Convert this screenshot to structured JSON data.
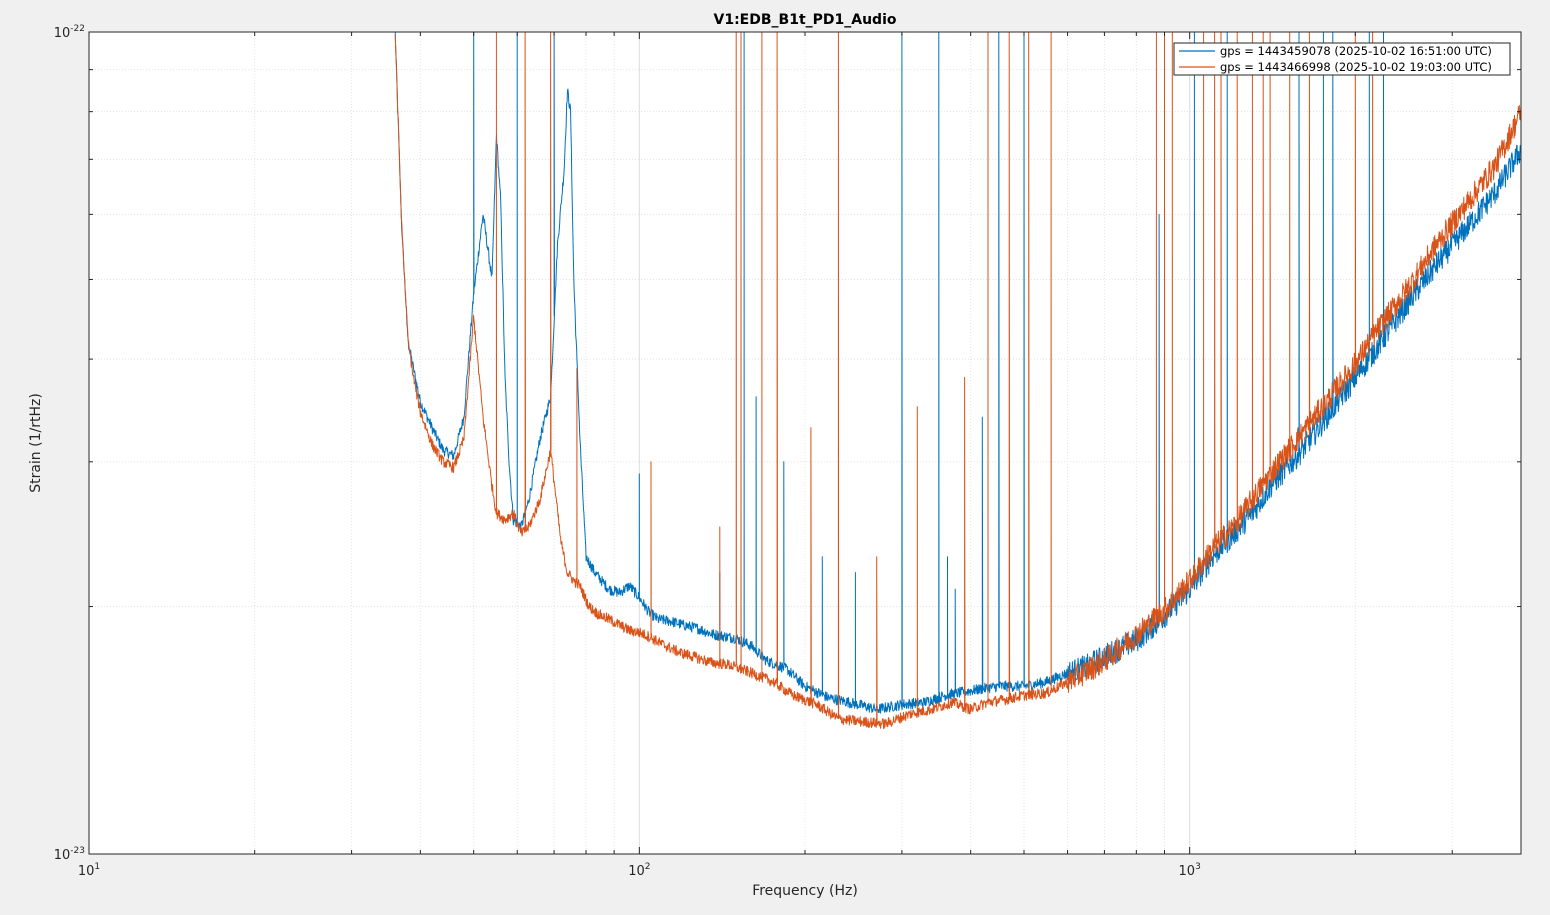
{
  "chart_data": {
    "type": "line",
    "title": "V1:EDB_B1t_PD1_Audio",
    "xlabel": "Frequency (Hz)",
    "ylabel": "Strain (1/rtHz)",
    "xscale": "log",
    "yscale": "log",
    "xlim": [
      10,
      4000
    ],
    "ylim": [
      1e-23,
      1e-22
    ],
    "x_ticks": [
      {
        "base": "10",
        "exp": "1"
      },
      {
        "base": "10",
        "exp": "2"
      },
      {
        "base": "10",
        "exp": "3"
      }
    ],
    "y_ticks": [
      {
        "base": "10",
        "exp": "-23"
      },
      {
        "base": "10",
        "exp": "-22"
      }
    ],
    "grid": true,
    "legend_location": "top-right",
    "series": [
      {
        "name": "gps = 1443459078 (2025-10-02 16:51:00 UTC)",
        "color": "#0072bd",
        "points": [
          [
            36,
            1e-22
          ],
          [
            37,
            5.8e-23
          ],
          [
            38,
            4.2e-23
          ],
          [
            39,
            3.85e-23
          ],
          [
            40,
            3.55e-23
          ],
          [
            42,
            3.3e-23
          ],
          [
            44,
            3.1e-23
          ],
          [
            46,
            3.05e-23
          ],
          [
            48,
            3.4e-23
          ],
          [
            50,
            4.8e-23
          ],
          [
            52,
            6e-23
          ],
          [
            54,
            5e-23
          ],
          [
            55,
            7.5e-23
          ],
          [
            56,
            6.2e-23
          ],
          [
            57,
            3.8e-23
          ],
          [
            58,
            3e-23
          ],
          [
            59,
            2.55e-23
          ],
          [
            61,
            2.5e-23
          ],
          [
            63,
            2.7e-23
          ],
          [
            66,
            3.2e-23
          ],
          [
            69,
            3.6e-23
          ],
          [
            71,
            5.5e-23
          ],
          [
            73,
            6.8e-23
          ],
          [
            74,
            8.5e-23
          ],
          [
            75,
            8e-23
          ],
          [
            76,
            5e-23
          ],
          [
            78,
            3.2e-23
          ],
          [
            80,
            2.3e-23
          ],
          [
            83,
            2.2e-23
          ],
          [
            88,
            2.1e-23
          ],
          [
            92,
            2.08e-23
          ],
          [
            96,
            2.12e-23
          ],
          [
            100,
            2.05e-23
          ],
          [
            104,
            1.97e-23
          ],
          [
            108,
            1.93e-23
          ],
          [
            114,
            1.92e-23
          ],
          [
            120,
            1.9e-23
          ],
          [
            128,
            1.88e-23
          ],
          [
            136,
            1.85e-23
          ],
          [
            150,
            1.83e-23
          ],
          [
            160,
            1.79e-23
          ],
          [
            170,
            1.72e-23
          ],
          [
            185,
            1.68e-23
          ],
          [
            200,
            1.6e-23
          ],
          [
            220,
            1.55e-23
          ],
          [
            240,
            1.53e-23
          ],
          [
            270,
            1.5e-23
          ],
          [
            300,
            1.52e-23
          ],
          [
            330,
            1.53e-23
          ],
          [
            360,
            1.56e-23
          ],
          [
            400,
            1.58e-23
          ],
          [
            450,
            1.6e-23
          ],
          [
            500,
            1.6e-23
          ],
          [
            550,
            1.62e-23
          ],
          [
            600,
            1.66e-23
          ],
          [
            650,
            1.69e-23
          ],
          [
            700,
            1.74e-23
          ],
          [
            800,
            1.82e-23
          ],
          [
            900,
            1.95e-23
          ],
          [
            1000,
            2.1e-23
          ],
          [
            1100,
            2.3e-23
          ],
          [
            1200,
            2.45e-23
          ],
          [
            1300,
            2.6e-23
          ],
          [
            1400,
            2.8e-23
          ],
          [
            1600,
            3.1e-23
          ],
          [
            1800,
            3.45e-23
          ],
          [
            2000,
            3.8e-23
          ],
          [
            2200,
            4.15e-23
          ],
          [
            2500,
            4.7e-23
          ],
          [
            2800,
            5.2e-23
          ],
          [
            3200,
            5.8e-23
          ],
          [
            3600,
            6.4e-23
          ],
          [
            4000,
            7.2e-23
          ]
        ],
        "spikes": [
          [
            50,
            1e-22
          ],
          [
            60,
            1e-22
          ],
          [
            70,
            1e-22
          ],
          [
            100,
            2.9e-23
          ],
          [
            105,
            2.7e-23
          ],
          [
            140,
            2.2e-23
          ],
          [
            155,
            1e-22
          ],
          [
            163,
            3.6e-23
          ],
          [
            183,
            3e-23
          ],
          [
            215,
            2.3e-23
          ],
          [
            247,
            2.2e-23
          ],
          [
            300,
            1e-22
          ],
          [
            350,
            1e-22
          ],
          [
            363,
            2.3e-23
          ],
          [
            375,
            2.1e-23
          ],
          [
            420,
            3.4e-23
          ],
          [
            450,
            1e-22
          ],
          [
            500,
            1e-22
          ],
          [
            880,
            6e-23
          ],
          [
            1020,
            1e-22
          ],
          [
            1170,
            1e-22
          ],
          [
            1580,
            1e-22
          ],
          [
            1750,
            1e-22
          ],
          [
            1820,
            1e-22
          ],
          [
            2120,
            1e-22
          ],
          [
            2250,
            1e-22
          ]
        ]
      },
      {
        "name": "gps = 1443466998 (2025-10-02 19:03:00 UTC)",
        "color": "#d95319",
        "points": [
          [
            36,
            1e-22
          ],
          [
            37,
            5.8e-23
          ],
          [
            38,
            4.2e-23
          ],
          [
            39,
            3.75e-23
          ],
          [
            40,
            3.45e-23
          ],
          [
            42,
            3.15e-23
          ],
          [
            44,
            3e-23
          ],
          [
            46,
            2.95e-23
          ],
          [
            48,
            3.2e-23
          ],
          [
            50,
            4.5e-23
          ],
          [
            52,
            3.4e-23
          ],
          [
            54,
            2.8e-23
          ],
          [
            55,
            2.6e-23
          ],
          [
            57,
            2.55e-23
          ],
          [
            59,
            2.6e-23
          ],
          [
            61,
            2.45e-23
          ],
          [
            63,
            2.5e-23
          ],
          [
            66,
            2.7e-23
          ],
          [
            69,
            3.1e-23
          ],
          [
            72,
            2.4e-23
          ],
          [
            74,
            2.2e-23
          ],
          [
            76,
            2.15e-23
          ],
          [
            78,
            2.12e-23
          ],
          [
            81,
            2e-23
          ],
          [
            84,
            1.96e-23
          ],
          [
            88,
            1.93e-23
          ],
          [
            92,
            1.9e-23
          ],
          [
            96,
            1.87e-23
          ],
          [
            100,
            1.86e-23
          ],
          [
            104,
            1.84e-23
          ],
          [
            110,
            1.8e-23
          ],
          [
            118,
            1.76e-23
          ],
          [
            125,
            1.74e-23
          ],
          [
            135,
            1.71e-23
          ],
          [
            145,
            1.7e-23
          ],
          [
            160,
            1.66e-23
          ],
          [
            175,
            1.62e-23
          ],
          [
            190,
            1.56e-23
          ],
          [
            210,
            1.52e-23
          ],
          [
            230,
            1.46e-23
          ],
          [
            250,
            1.45e-23
          ],
          [
            280,
            1.44e-23
          ],
          [
            310,
            1.48e-23
          ],
          [
            340,
            1.5e-23
          ],
          [
            370,
            1.53e-23
          ],
          [
            400,
            1.5e-23
          ],
          [
            430,
            1.53e-23
          ],
          [
            460,
            1.54e-23
          ],
          [
            500,
            1.56e-23
          ],
          [
            550,
            1.57e-23
          ],
          [
            600,
            1.62e-23
          ],
          [
            650,
            1.67e-23
          ],
          [
            700,
            1.72e-23
          ],
          [
            800,
            1.85e-23
          ],
          [
            900,
            1.98e-23
          ],
          [
            1000,
            2.15e-23
          ],
          [
            1100,
            2.35e-23
          ],
          [
            1200,
            2.5e-23
          ],
          [
            1300,
            2.7e-23
          ],
          [
            1400,
            2.9e-23
          ],
          [
            1600,
            3.25e-23
          ],
          [
            1800,
            3.6e-23
          ],
          [
            2000,
            3.95e-23
          ],
          [
            2200,
            4.35e-23
          ],
          [
            2500,
            4.9e-23
          ],
          [
            2800,
            5.5e-23
          ],
          [
            3200,
            6.2e-23
          ],
          [
            3600,
            6.9e-23
          ],
          [
            4000,
            8e-23
          ]
        ],
        "spikes": [
          [
            55,
            1e-22
          ],
          [
            62,
            1e-22
          ],
          [
            69,
            1e-22
          ],
          [
            77,
            3.9e-23
          ],
          [
            105,
            3e-23
          ],
          [
            140,
            2.5e-23
          ],
          [
            150,
            1e-22
          ],
          [
            153,
            1e-22
          ],
          [
            167,
            1e-22
          ],
          [
            178,
            1e-22
          ],
          [
            205,
            3.3e-23
          ],
          [
            230,
            1e-22
          ],
          [
            270,
            2.3e-23
          ],
          [
            320,
            3.5e-23
          ],
          [
            390,
            3.8e-23
          ],
          [
            430,
            1e-22
          ],
          [
            470,
            1e-22
          ],
          [
            510,
            1e-22
          ],
          [
            560,
            1e-22
          ],
          [
            870,
            1e-22
          ],
          [
            900,
            1e-22
          ],
          [
            930,
            1e-22
          ],
          [
            1060,
            1e-22
          ],
          [
            1110,
            1e-22
          ],
          [
            1140,
            1e-22
          ],
          [
            1220,
            1e-22
          ],
          [
            1300,
            1e-22
          ],
          [
            1360,
            1e-22
          ],
          [
            1400,
            1e-22
          ],
          [
            1520,
            1e-22
          ],
          [
            1650,
            1e-22
          ],
          [
            2000,
            1e-22
          ],
          [
            2150,
            1e-22
          ]
        ]
      }
    ]
  }
}
